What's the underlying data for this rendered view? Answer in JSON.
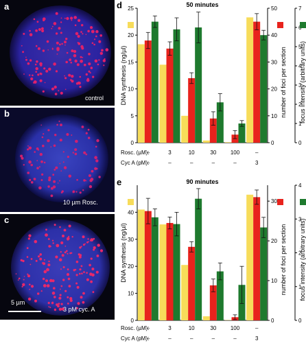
{
  "micrographs": [
    {
      "label": "a",
      "caption": "control"
    },
    {
      "label": "b",
      "caption": "10 µm Rosc."
    },
    {
      "label": "c",
      "caption": "3 pM cyc. A",
      "scalebar": "5 µm"
    }
  ],
  "row_labels": {
    "rosc": "Rosc. (µM):",
    "cyca": "Cyc A (pM):"
  },
  "colors": {
    "dna": "#f7dc5a",
    "foci": "#e8231d",
    "intensity": "#1e7a2e"
  },
  "chart_data": [
    {
      "type": "bar",
      "panel": "d",
      "title": "50 minutes",
      "ylabel_left": "DNA synthesis  (ng/µl)",
      "ylabel_right1": "number of foci per section",
      "ylabel_right2": "focus intensity (arbitrary units)",
      "left_ticks": [
        "0",
        "5",
        "10",
        "15",
        "20",
        "25"
      ],
      "right1_ticks": [
        "0",
        "10",
        "20",
        "30",
        "40",
        "50"
      ],
      "right2_ticks": [
        "0",
        "1",
        "2",
        "3",
        "4",
        "5",
        "6",
        "7"
      ],
      "ylim_left": [
        0,
        25
      ],
      "ylim_right1": [
        0,
        50
      ],
      "ylim_right2": [
        0,
        7
      ],
      "rosc": [
        "–",
        "3",
        "10",
        "30",
        "100",
        "–"
      ],
      "cyca": [
        "–",
        "–",
        "–",
        "–",
        "–",
        "3"
      ],
      "series": [
        {
          "name": "DNA synthesis",
          "axis": "left",
          "values": [
            18.3,
            14.5,
            5.0,
            0.4,
            0.1,
            23.3
          ]
        },
        {
          "name": "number of foci per section",
          "axis": "right1",
          "values": [
            38,
            35,
            24,
            9,
            3,
            45
          ],
          "errors": [
            3,
            2.5,
            2,
            2.5,
            1.5,
            3
          ]
        },
        {
          "name": "focus intensity",
          "axis": "right2",
          "values": [
            6.3,
            5.9,
            6.0,
            2.1,
            1.0,
            5.6
          ],
          "errors": [
            0.3,
            0.6,
            0.8,
            0.45,
            0.15,
            0.25
          ]
        }
      ]
    },
    {
      "type": "bar",
      "panel": "e",
      "title": "90 minutes",
      "ylabel_left": "DNA synthesis  (ng/µl)",
      "ylabel_right1": "number of foci per section",
      "ylabel_right2": "focus intensity (arbitrary units)",
      "left_ticks": [
        "0",
        "10",
        "20",
        "30",
        "40"
      ],
      "right1_ticks": [
        "0",
        "10",
        "20",
        "30"
      ],
      "right2_ticks": [
        "0",
        "1",
        "2",
        "3",
        "4"
      ],
      "ylim_left": [
        0,
        50
      ],
      "ylim_right1": [
        0,
        34
      ],
      "ylim_right2": [
        0,
        4
      ],
      "rosc": [
        "–",
        "3",
        "10",
        "30",
        "100",
        "–"
      ],
      "cyca": [
        "–",
        "–",
        "–",
        "–",
        "–",
        "3"
      ],
      "series": [
        {
          "name": "DNA synthesis",
          "axis": "left",
          "values": [
            41,
            35.5,
            20.5,
            1.5,
            0.1,
            46.5
          ]
        },
        {
          "name": "number of foci per section",
          "axis": "right1",
          "values": [
            27.5,
            24.5,
            18.5,
            8.8,
            0.8,
            31
          ],
          "errors": [
            3.2,
            1.5,
            1.3,
            1.6,
            0.6,
            1.8
          ]
        },
        {
          "name": "focus intensity",
          "axis": "right2",
          "values": [
            3.05,
            2.85,
            3.6,
            1.45,
            1.05,
            2.75
          ],
          "errors": [
            0.25,
            0.35,
            0.3,
            0.25,
            0.55,
            0.3
          ]
        }
      ]
    }
  ]
}
